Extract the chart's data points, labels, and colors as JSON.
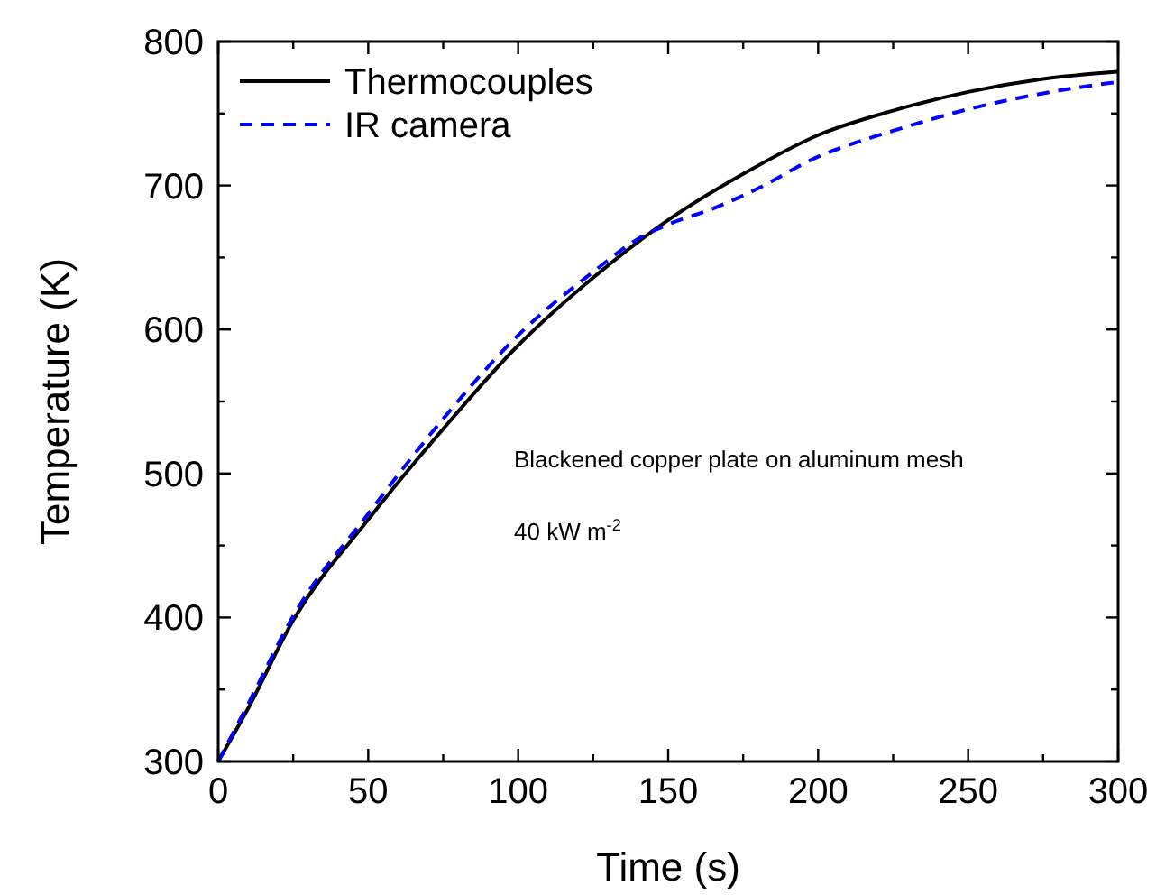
{
  "chart_data": {
    "type": "line",
    "xlabel": "Time (s)",
    "ylabel": "Temperature (K)",
    "xlim": [
      0,
      300
    ],
    "ylim": [
      300,
      800
    ],
    "xticks": [
      0,
      {
        "value": 25,
        "label": null
      },
      50,
      {
        "value": 75,
        "label": null
      },
      100,
      {
        "value": 125,
        "label": null
      },
      150,
      {
        "value": 175,
        "label": null
      },
      200,
      {
        "value": 225,
        "label": null
      },
      250,
      {
        "value": 275,
        "label": null
      },
      300
    ],
    "yticks": [
      300,
      {
        "value": 350,
        "label": null
      },
      400,
      {
        "value": 450,
        "label": null
      },
      500,
      {
        "value": 550,
        "label": null
      },
      600,
      {
        "value": 650,
        "label": null
      },
      700,
      {
        "value": 750,
        "label": null
      },
      800
    ],
    "legend": "top left",
    "grid": false,
    "annotations": [
      "Blackened copper plate on aluminum mesh",
      "40 kW m$^{-2}$"
    ],
    "series": [
      {
        "name": "Thermocouples",
        "color": "#000000",
        "line_style": "solid",
        "x": [
          0,
          10,
          25,
          50,
          75,
          100,
          125,
          150,
          175,
          200,
          225,
          250,
          275,
          300
        ],
        "values": [
          300,
          337,
          398,
          468,
          531,
          589,
          636,
          676,
          708,
          735,
          752,
          765,
          774,
          779
        ]
      },
      {
        "name": "IR camera",
        "color": "#0000ff",
        "line_style": "dashed",
        "x": [
          0,
          10,
          25,
          50,
          75,
          100,
          125,
          140,
          150,
          165,
          180,
          200,
          210,
          225,
          250,
          275,
          300
        ],
        "values": [
          300,
          340,
          401,
          472,
          538,
          596,
          640,
          663,
          673,
          684,
          698,
          720,
          728,
          738,
          753,
          764,
          772
        ]
      }
    ]
  }
}
